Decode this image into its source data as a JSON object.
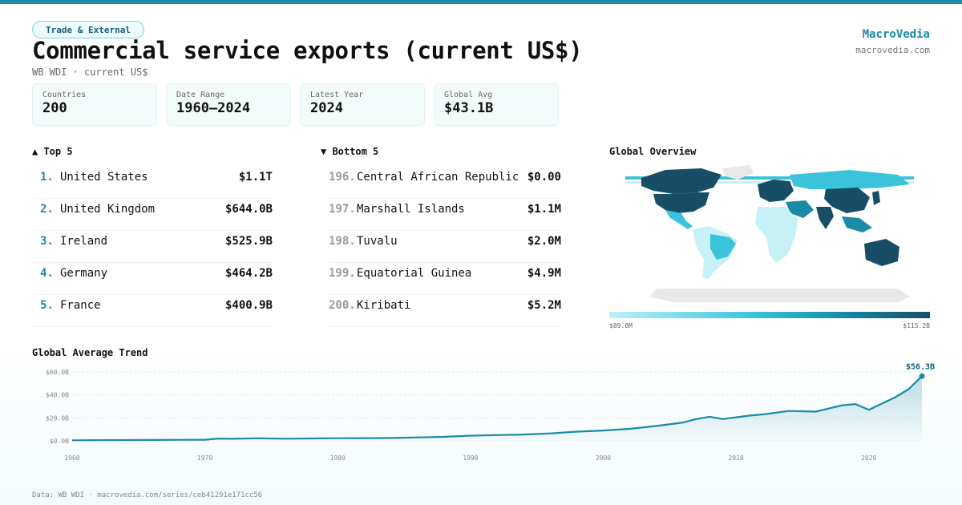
{
  "header": {
    "tag": "Trade & External",
    "title": "Commercial service exports (current US$)",
    "subtitle": "WB WDI · current US$",
    "brand": "MacroVedia",
    "brand_url": "macrovedia.com"
  },
  "stats": [
    {
      "label": "Countries",
      "value": "200"
    },
    {
      "label": "Date Range",
      "value": "1960–2024"
    },
    {
      "label": "Latest Year",
      "value": "2024"
    },
    {
      "label": "Global Avg",
      "value": "$43.1B"
    }
  ],
  "top5": {
    "heading": "▲ Top 5",
    "items": [
      {
        "rank": "1.",
        "name": "United States",
        "value": "$1.1T"
      },
      {
        "rank": "2.",
        "name": "United Kingdom",
        "value": "$644.0B"
      },
      {
        "rank": "3.",
        "name": "Ireland",
        "value": "$525.9B"
      },
      {
        "rank": "4.",
        "name": "Germany",
        "value": "$464.2B"
      },
      {
        "rank": "5.",
        "name": "France",
        "value": "$400.9B"
      }
    ]
  },
  "bottom5": {
    "heading": "▼ Bottom 5",
    "items": [
      {
        "rank": "196.",
        "name": "Central African Republic",
        "value": "$0.00"
      },
      {
        "rank": "197.",
        "name": "Marshall Islands",
        "value": "$1.1M"
      },
      {
        "rank": "198.",
        "name": "Tuvalu",
        "value": "$2.0M"
      },
      {
        "rank": "199.",
        "name": "Equatorial Guinea",
        "value": "$4.9M"
      },
      {
        "rank": "200.",
        "name": "Kiribati",
        "value": "$5.2M"
      }
    ]
  },
  "map": {
    "heading": "Global Overview",
    "legend_min": "$89.8M",
    "legend_max": "$115.2B",
    "colors": {
      "none": "#e6e8ea",
      "low": "#c6f1f7",
      "mid": "#3cc3dc",
      "high": "#1a8aa6",
      "top": "#174e66"
    }
  },
  "trend": {
    "heading": "Global Average Trend",
    "end_label": "$56.3B"
  },
  "footer": "Data: WB WDI · macrovedia.com/series/ceb41291e171cc56",
  "chart_data": {
    "type": "area",
    "title": "Global Average Trend",
    "ylim": [
      0,
      60
    ],
    "yticks": [
      0,
      20,
      40,
      60
    ],
    "ytick_labels": [
      "$0.0B",
      "$20.0B",
      "$40.0B",
      "$60.0B"
    ],
    "xticks": [
      1960,
      1970,
      1980,
      1990,
      2000,
      2010,
      2020
    ],
    "xlim": [
      1960,
      2024
    ],
    "grid": true,
    "color": "#1a8aa6",
    "series": [
      {
        "x": [
          1960,
          1962,
          1964,
          1966,
          1968,
          1970,
          1971,
          1972,
          1974,
          1976,
          1978,
          1980,
          1982,
          1984,
          1986,
          1988,
          1990,
          1992,
          1994,
          1996,
          1998,
          2000,
          2002,
          2004,
          2006,
          2007,
          2008,
          2009,
          2010,
          2011,
          2012,
          2014,
          2016,
          2018,
          2019,
          2020,
          2021,
          2022,
          2023,
          2024
        ],
        "y": [
          0.5,
          0.6,
          0.7,
          0.8,
          0.9,
          1.0,
          2.0,
          1.8,
          2.2,
          1.9,
          2.1,
          2.3,
          2.4,
          2.5,
          3.0,
          3.5,
          4.5,
          5.0,
          5.5,
          6.5,
          8.0,
          9.0,
          10.5,
          13.0,
          16.0,
          19.0,
          21.0,
          19.0,
          20.5,
          22.0,
          23.0,
          26.0,
          25.5,
          31.0,
          32.0,
          27.0,
          32.5,
          38.0,
          45.0,
          56.3
        ]
      }
    ]
  }
}
